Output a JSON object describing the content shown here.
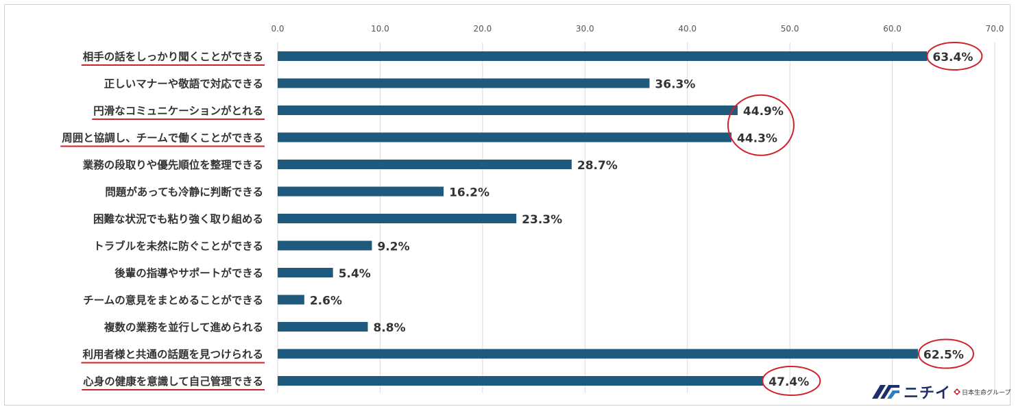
{
  "chart_data": {
    "type": "bar",
    "orientation": "horizontal",
    "x_ticks": [
      "0.0",
      "10.0",
      "20.0",
      "30.0",
      "40.0",
      "50.0",
      "60.0",
      "70.0"
    ],
    "xlim": [
      0,
      70
    ],
    "grid": true,
    "bar_color": "#1e5a7d",
    "highlight_color": "#d0202a",
    "categories": [
      "相手の話をしっかり聞くことができる",
      "正しいマナーや敬語で対応できる",
      "円滑なコミュニケーションがとれる",
      "周囲と協調し、チームで働くことができる",
      "業務の段取りや優先順位を整理できる",
      "問題があっても冷静に判断できる",
      "困難な状況でも粘り強く取り組める",
      "トラブルを未然に防ぐことができる",
      "後輩の指導やサポートができる",
      "チームの意見をまとめることができる",
      "複数の業務を並行して進められる",
      "利用者様と共通の話題を見つけられる",
      "心身の健康を意識して自己管理できる"
    ],
    "values": [
      63.4,
      36.3,
      44.9,
      44.3,
      28.7,
      16.2,
      23.3,
      9.2,
      5.4,
      2.6,
      8.8,
      62.5,
      47.4
    ],
    "value_labels": [
      "63.4%",
      "36.3%",
      "44.9%",
      "44.3%",
      "28.7%",
      "16.2%",
      "23.3%",
      "9.2%",
      "5.4%",
      "2.6%",
      "8.8%",
      "62.5%",
      "47.4%"
    ],
    "underlined_categories": [
      0,
      2,
      3,
      11,
      12
    ]
  },
  "logo": {
    "name": "ニチイ",
    "group": "日本生命グループ"
  }
}
